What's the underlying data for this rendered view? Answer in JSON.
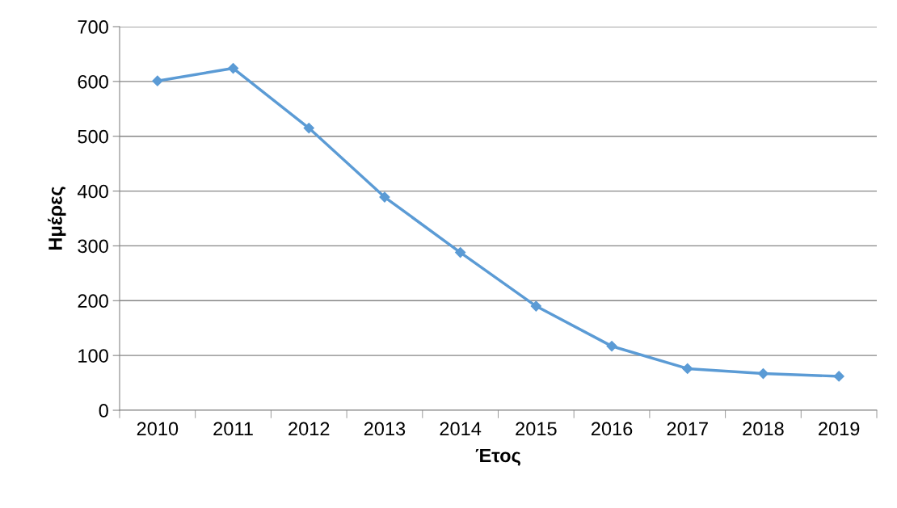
{
  "chart_data": {
    "type": "line",
    "xlabel": "Έτος",
    "ylabel": "Ημέρες",
    "categories": [
      "2010",
      "2011",
      "2012",
      "2013",
      "2014",
      "2015",
      "2016",
      "2017",
      "2018",
      "2019"
    ],
    "series": [
      {
        "color": "#5b9bd5",
        "values": [
          601,
          624,
          515,
          389,
          288,
          190,
          117,
          76,
          67,
          62
        ]
      }
    ],
    "ylim": [
      0,
      700
    ],
    "yticks": [
      0,
      100,
      200,
      300,
      400,
      500,
      600,
      700
    ],
    "grid": "y",
    "marker": "diamond",
    "line_style": "solid",
    "legend": false
  }
}
